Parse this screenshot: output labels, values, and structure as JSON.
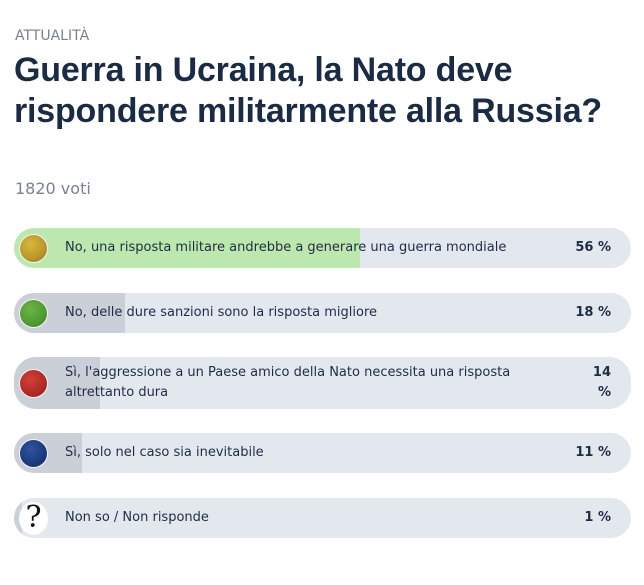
{
  "header": {
    "section": "ATTUALITÀ",
    "title": "Guerra in Ucraina, la Nato deve rispondere militarmente alla Russia?",
    "votes": "1820 voti"
  },
  "poll": {
    "options": [
      {
        "label": "No, una risposta militare andrebbe a generare una guerra mondiale",
        "percent_text": "56 %",
        "percent": 56,
        "icon": "gold-ball-icon",
        "color": "#c9a632",
        "leading": true
      },
      {
        "label": "No, delle dure sanzioni sono la risposta migliore",
        "percent_text": "18 %",
        "percent": 18,
        "icon": "green-ball-icon",
        "color": "#55a035",
        "leading": false
      },
      {
        "label": "Sì, l'aggressione a un Paese amico della Nato necessita una risposta altrettanto dura",
        "percent_text_line1": "14",
        "percent_text_line2": "%",
        "percent": 14,
        "icon": "red-ball-icon",
        "color": "#b52c26",
        "leading": false
      },
      {
        "label": "Sì, solo nel caso sia inevitabile",
        "percent_text": "11 %",
        "percent": 11,
        "icon": "blue-ball-icon",
        "color": "#1e3d80",
        "leading": false
      },
      {
        "label": "Non so / Non risponde",
        "percent_text": "1 %",
        "percent": 1,
        "icon": "question-mark-icon",
        "icon_glyph": "?",
        "color": "#111111",
        "leading": false
      }
    ],
    "colors": {
      "leading_fill": "#bce8b0",
      "fill": "#cbcfd8",
      "track": "#e3e7ee"
    }
  }
}
